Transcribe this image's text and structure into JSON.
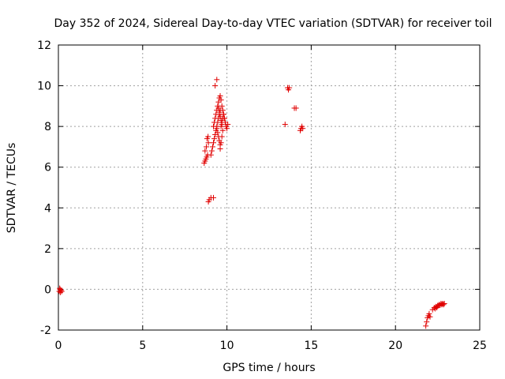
{
  "chart_data": {
    "type": "scatter",
    "title": "Day 352 of 2024, Sidereal Day-to-day VTEC variation (SDTVAR) for receiver toil",
    "xlabel": "GPS time / hours",
    "ylabel": "SDTVAR / TECUs",
    "xlim": [
      0,
      25
    ],
    "ylim": [
      -2,
      12
    ],
    "grid": true,
    "marker": "plus",
    "color": "#e00000",
    "xticks": [
      0,
      5,
      10,
      15,
      20,
      25
    ],
    "yticks": [
      -2,
      0,
      2,
      4,
      6,
      8,
      10,
      12
    ],
    "xtick_labels": [
      "0",
      "5",
      "10",
      "15",
      "20",
      "25"
    ],
    "ytick_labels": [
      "-2",
      "0",
      "2",
      "4",
      "6",
      "8",
      "10",
      "12"
    ],
    "series": [
      {
        "name": "SDTVAR",
        "x": [
          0.05,
          0.1,
          0.15,
          0.2,
          0.12,
          0.08,
          8.65,
          8.7,
          8.75,
          8.8,
          8.85,
          8.7,
          8.78,
          8.9,
          8.82,
          8.88,
          8.9,
          8.95,
          9.05,
          9.2,
          9.05,
          9.1,
          9.15,
          9.2,
          9.25,
          9.3,
          9.35,
          9.4,
          9.45,
          9.5,
          9.55,
          9.6,
          9.2,
          9.25,
          9.3,
          9.35,
          9.4,
          9.45,
          9.5,
          9.55,
          9.6,
          9.65,
          9.5,
          9.55,
          9.6,
          9.65,
          9.7,
          9.4,
          9.45,
          9.5,
          9.55,
          9.6,
          9.65,
          9.7,
          9.75,
          9.8,
          9.85,
          9.9,
          9.95,
          10.0,
          10.05,
          9.7,
          9.75,
          9.8,
          9.85,
          9.9,
          9.6,
          9.65,
          9.7,
          9.75,
          9.3,
          9.4,
          13.45,
          13.6,
          13.65,
          13.7,
          14.0,
          14.1,
          14.35,
          14.4,
          14.45,
          14.5,
          21.8,
          21.85,
          21.9,
          21.95,
          22.0,
          22.05,
          22.2,
          22.3,
          22.4,
          22.5,
          22.6,
          22.7,
          22.75,
          22.8,
          22.85,
          22.9,
          22.35,
          22.45,
          22.55,
          22.65
        ],
        "y": [
          -0.1,
          0.0,
          -0.05,
          -0.1,
          -0.15,
          0.05,
          6.2,
          6.3,
          6.4,
          6.5,
          6.6,
          6.8,
          7.0,
          7.2,
          7.4,
          7.5,
          4.3,
          4.4,
          4.5,
          4.5,
          6.6,
          6.8,
          7.0,
          7.2,
          7.4,
          7.6,
          7.8,
          8.0,
          8.2,
          8.4,
          8.6,
          8.8,
          8.0,
          8.2,
          8.4,
          8.6,
          8.8,
          9.0,
          9.2,
          9.4,
          9.5,
          9.3,
          8.9,
          8.7,
          8.5,
          8.3,
          8.1,
          7.9,
          7.7,
          7.5,
          7.3,
          7.1,
          8.0,
          8.2,
          8.4,
          8.6,
          8.4,
          8.2,
          8.0,
          7.9,
          8.1,
          9.0,
          8.8,
          8.6,
          8.4,
          8.2,
          6.9,
          7.2,
          7.5,
          7.8,
          10.0,
          10.3,
          8.1,
          9.9,
          9.8,
          9.9,
          8.9,
          8.9,
          7.8,
          7.9,
          8.0,
          7.9,
          -1.8,
          -1.6,
          -1.4,
          -1.3,
          -1.2,
          -1.35,
          -1.0,
          -0.9,
          -0.85,
          -0.8,
          -0.75,
          -0.7,
          -0.75,
          -0.7,
          -0.75,
          -0.7,
          -0.95,
          -0.9,
          -0.8,
          -0.78
        ]
      }
    ]
  }
}
